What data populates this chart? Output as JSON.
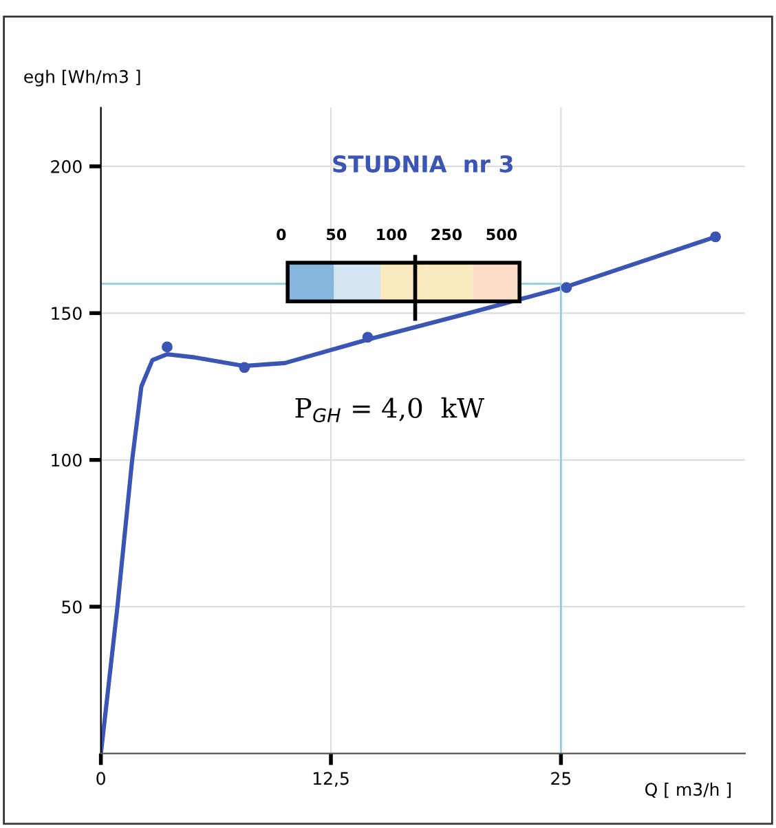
{
  "chart_data": {
    "type": "line",
    "title": "STUDNIA  nr 3",
    "xlabel": "Q [ m3/h ]",
    "ylabel": "egh [Wh/m3 ]",
    "series": [
      {
        "color": "#3a55b4",
        "marker": "none",
        "x": [
          0,
          0.9,
          1.7,
          2.2,
          2.8,
          3.6,
          5,
          7.8,
          10,
          14.5,
          20,
          25.3,
          33.4
        ],
        "values": [
          0,
          50,
          100,
          125,
          134,
          136,
          135,
          132,
          133,
          141,
          150,
          159,
          176
        ]
      },
      {
        "type": "scatter",
        "color": "#3a55b4",
        "marker": "circle",
        "x": [
          3.6,
          7.8,
          14.5,
          25.3,
          33.4
        ],
        "values": [
          138.5,
          131.5,
          141.8,
          158.7,
          176
        ]
      },
      {
        "color": "#8fd0e0",
        "marker": "none",
        "x": [
          0,
          25,
          25
        ],
        "values": [
          160,
          160,
          0
        ]
      }
    ],
    "annotations": [
      "P$_{GH}$ = 4,0  kW",
      "0",
      "50",
      "100",
      "250",
      "500"
    ],
    "xlim": [
      0,
      35
    ],
    "ylim": [
      0,
      220
    ],
    "xticks": [
      0,
      {
        "value": 12.5,
        "label": "12,5"
      },
      25
    ],
    "yticks": [
      50,
      100,
      150,
      200
    ],
    "grid": true,
    "legend": false
  }
}
